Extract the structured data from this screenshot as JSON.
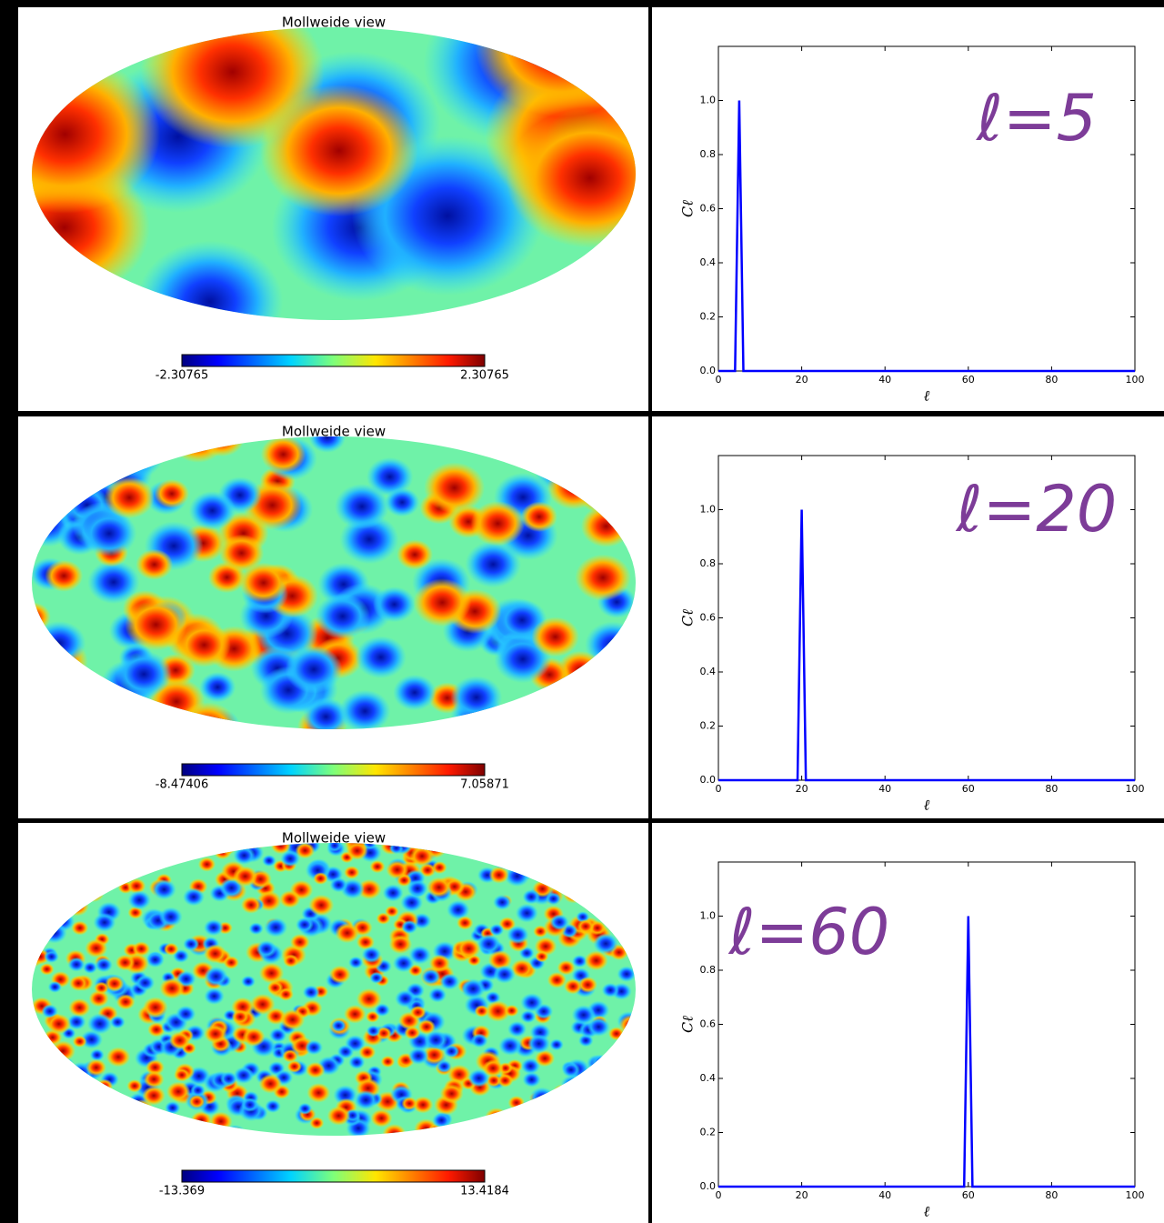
{
  "chart_data": [
    {
      "type": "map",
      "title": "Mollweide view",
      "colorbar_min": -2.30765,
      "colorbar_max": 2.30765
    },
    {
      "type": "line",
      "annotation": "ℓ=5",
      "x_label": "ℓ",
      "y_label": "Cℓ",
      "x": [
        0,
        4,
        5,
        6,
        100
      ],
      "values": [
        0,
        0,
        1,
        0,
        0
      ],
      "color": "#0000ff",
      "xlim": [
        0,
        100
      ],
      "ylim": [
        0,
        1.2
      ],
      "xticks": [
        0,
        20,
        40,
        60,
        80,
        100
      ],
      "yticks": [
        {
          "value": 0,
          "label": "0.0"
        },
        0.2,
        0.4,
        0.6,
        0.8,
        {
          "value": 1,
          "label": "1.0"
        }
      ]
    },
    {
      "type": "map",
      "title": "Mollweide view",
      "colorbar_min": -8.47406,
      "colorbar_max": 7.05871
    },
    {
      "type": "line",
      "annotation": "ℓ=20",
      "x_label": "ℓ",
      "y_label": "Cℓ",
      "x": [
        0,
        19,
        20,
        21,
        100
      ],
      "values": [
        0,
        0,
        1,
        0,
        0
      ],
      "color": "#0000ff",
      "xlim": [
        0,
        100
      ],
      "ylim": [
        0,
        1.2
      ],
      "xticks": [
        0,
        20,
        40,
        60,
        80,
        100
      ],
      "yticks": [
        {
          "value": 0,
          "label": "0.0"
        },
        0.2,
        0.4,
        0.6,
        0.8,
        {
          "value": 1,
          "label": "1.0"
        }
      ]
    },
    {
      "type": "map",
      "title": "Mollweide view",
      "colorbar_min": -13.369,
      "colorbar_max": 13.4184
    },
    {
      "type": "line",
      "annotation": "ℓ=60",
      "x_label": "ℓ",
      "y_label": "Cℓ",
      "x": [
        0,
        59,
        60,
        61,
        100
      ],
      "values": [
        0,
        0,
        1,
        0,
        0
      ],
      "color": "#0000ff",
      "xlim": [
        0,
        100
      ],
      "ylim": [
        0,
        1.2
      ],
      "xticks": [
        0,
        20,
        40,
        60,
        80,
        100
      ],
      "yticks": [
        {
          "value": 0,
          "label": "0.0"
        },
        0.2,
        0.4,
        0.6,
        0.8,
        {
          "value": 1,
          "label": "1.0"
        }
      ]
    }
  ]
}
